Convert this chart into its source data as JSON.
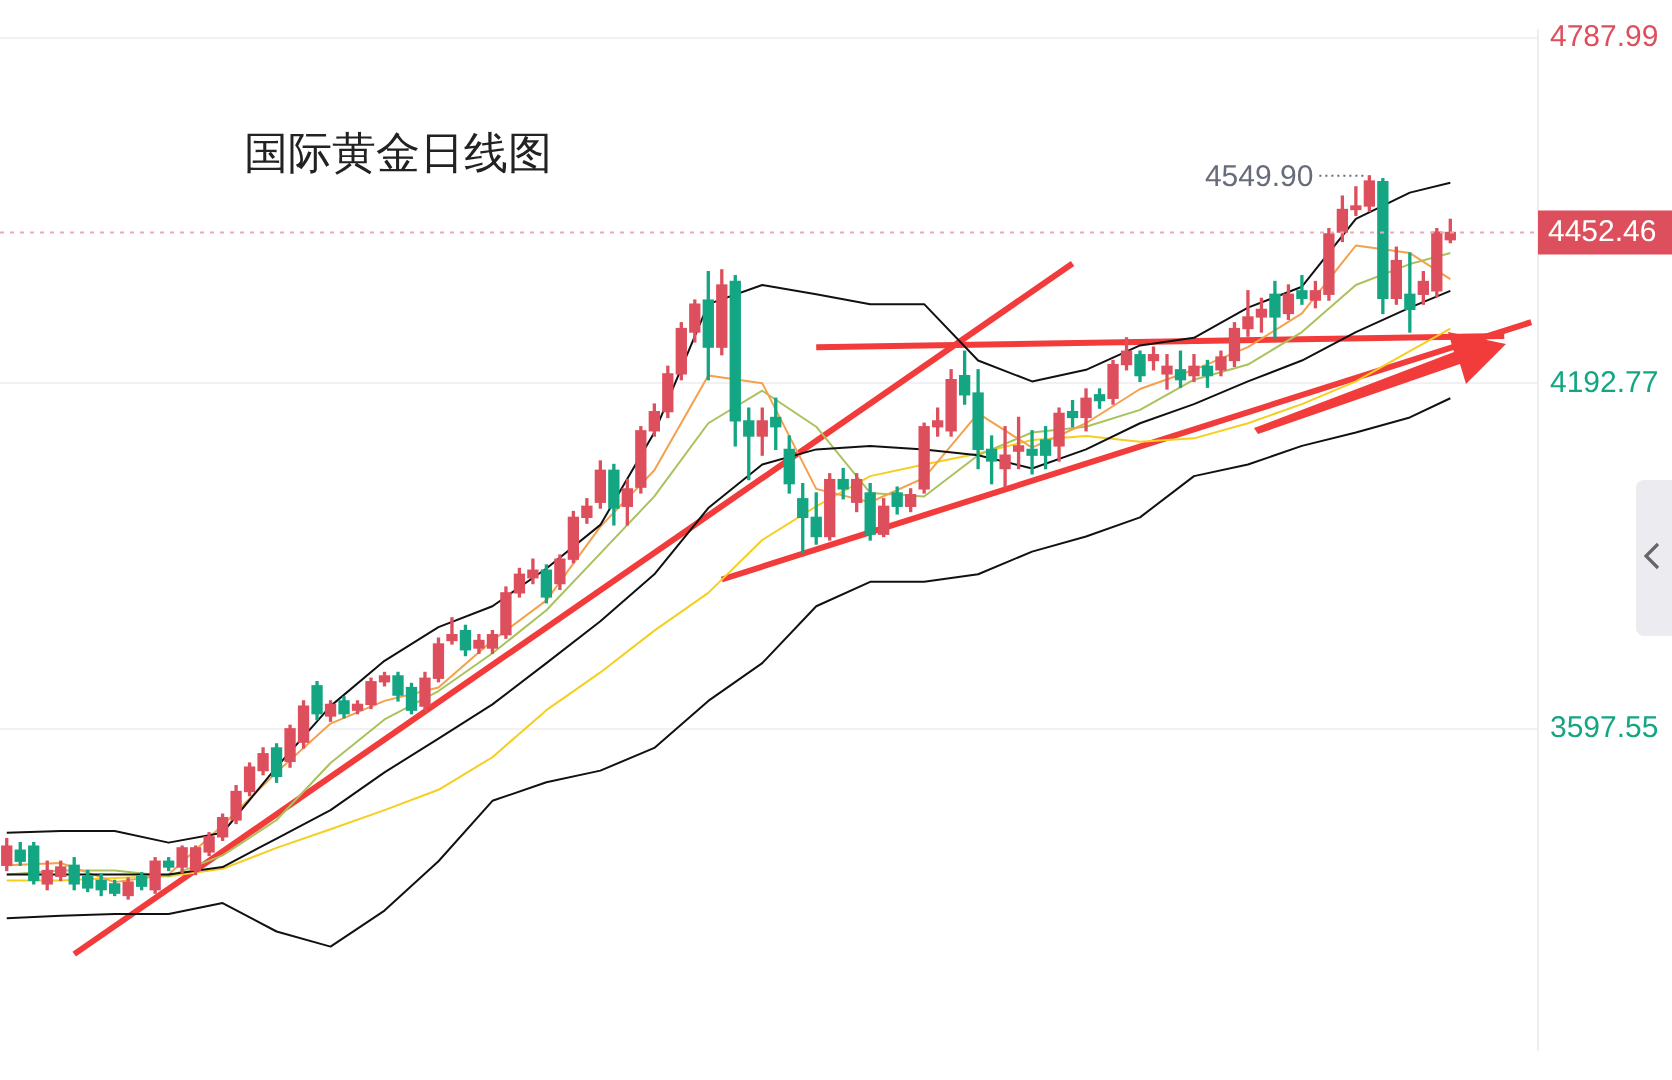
{
  "chart_data": {
    "type": "candlestick",
    "title": "国际黄金日线图",
    "categories": [
      null,
      null,
      null,
      null,
      null,
      null,
      null,
      null,
      null,
      null,
      null,
      null,
      null,
      null,
      null,
      null,
      null,
      null,
      null,
      null,
      null,
      null,
      null,
      null,
      null,
      null,
      null,
      null,
      null,
      null,
      null,
      null,
      null,
      null,
      null,
      null,
      null,
      null,
      null,
      null,
      null,
      null,
      null,
      null,
      null,
      null,
      null,
      null,
      null,
      null,
      null,
      null,
      null,
      null,
      null,
      null,
      null,
      null,
      null,
      null,
      null,
      null,
      null,
      null,
      null,
      null,
      null,
      null,
      null,
      null,
      null,
      null,
      null,
      null,
      null,
      null,
      null,
      null,
      null,
      null,
      null,
      null,
      null,
      null,
      null,
      null,
      null,
      null,
      null,
      null,
      null,
      null,
      null,
      null,
      null,
      null,
      null,
      null,
      null,
      null,
      null,
      null,
      null,
      null,
      null,
      null,
      null,
      null,
      null,
      null,
      null,
      null,
      null,
      null
    ],
    "ohlc": [
      [
        3363,
        3409,
        3354,
        3396
      ],
      [
        3389,
        3402,
        3363,
        3370
      ],
      [
        3396,
        3402,
        3331,
        3337
      ],
      [
        3331,
        3370,
        3321,
        3354
      ],
      [
        3344,
        3370,
        3337,
        3360
      ],
      [
        3363,
        3376,
        3321,
        3331
      ],
      [
        3344,
        3354,
        3318,
        3324
      ],
      [
        3337,
        3347,
        3311,
        3321
      ],
      [
        3331,
        3337,
        3311,
        3315
      ],
      [
        3311,
        3341,
        3305,
        3334
      ],
      [
        3344,
        3350,
        3321,
        3327
      ],
      [
        3321,
        3376,
        3315,
        3370
      ],
      [
        3370,
        3376,
        3354,
        3360
      ],
      [
        3360,
        3396,
        3350,
        3393
      ],
      [
        3354,
        3396,
        3347,
        3393
      ],
      [
        3386,
        3419,
        3380,
        3412
      ],
      [
        3412,
        3451,
        3406,
        3445
      ],
      [
        3441,
        3500,
        3435,
        3490
      ],
      [
        3490,
        3539,
        3483,
        3532
      ],
      [
        3526,
        3565,
        3519,
        3555
      ],
      [
        3565,
        3572,
        3506,
        3516
      ],
      [
        3542,
        3604,
        3532,
        3598
      ],
      [
        3575,
        3646,
        3565,
        3637
      ],
      [
        3672,
        3679,
        3614,
        3624
      ],
      [
        3620,
        3646,
        3611,
        3640
      ],
      [
        3646,
        3653,
        3617,
        3624
      ],
      [
        3630,
        3646,
        3624,
        3640
      ],
      [
        3640,
        3685,
        3633,
        3679
      ],
      [
        3679,
        3695,
        3672,
        3689
      ],
      [
        3689,
        3695,
        3646,
        3656
      ],
      [
        3669,
        3676,
        3624,
        3630
      ],
      [
        3637,
        3695,
        3630,
        3685
      ],
      [
        3685,
        3754,
        3679,
        3744
      ],
      [
        3750,
        3789,
        3744,
        3760
      ],
      [
        3767,
        3776,
        3724,
        3734
      ],
      [
        3737,
        3760,
        3728,
        3750
      ],
      [
        3737,
        3767,
        3728,
        3760
      ],
      [
        3760,
        3842,
        3754,
        3832
      ],
      [
        3832,
        3874,
        3825,
        3864
      ],
      [
        3858,
        3890,
        3848,
        3871
      ],
      [
        3871,
        3880,
        3815,
        3825
      ],
      [
        3848,
        3897,
        3838,
        3890
      ],
      [
        3890,
        3972,
        3884,
        3962
      ],
      [
        3962,
        3994,
        3952,
        3981
      ],
      [
        3988,
        4059,
        3978,
        4043
      ],
      [
        4043,
        4053,
        3949,
        3978
      ],
      [
        3981,
        4027,
        3949,
        4011
      ],
      [
        4014,
        4118,
        4004,
        4111
      ],
      [
        4111,
        4157,
        4102,
        4144
      ],
      [
        4144,
        4222,
        4134,
        4209
      ],
      [
        4209,
        4297,
        4199,
        4287
      ],
      [
        4281,
        4336,
        4264,
        4329
      ],
      [
        4336,
        4385,
        4199,
        4255
      ],
      [
        4255,
        4388,
        4242,
        4362
      ],
      [
        4368,
        4378,
        4085,
        4128
      ],
      [
        4128,
        4150,
        4027,
        4102
      ],
      [
        4102,
        4150,
        4069,
        4128
      ],
      [
        4134,
        4167,
        4079,
        4118
      ],
      [
        4079,
        4102,
        4004,
        4020
      ],
      [
        3994,
        4020,
        3900,
        3962
      ],
      [
        3962,
        4004,
        3916,
        3929
      ],
      [
        3929,
        4037,
        3923,
        4027
      ],
      [
        4027,
        4046,
        3994,
        4011
      ],
      [
        3988,
        4037,
        3972,
        4027
      ],
      [
        4004,
        4020,
        3923,
        3933
      ],
      [
        3933,
        3994,
        3929,
        3981
      ],
      [
        4004,
        4014,
        3968,
        3981
      ],
      [
        3981,
        4011,
        3972,
        4001
      ],
      [
        4011,
        4124,
        4004,
        4118
      ],
      [
        4118,
        4150,
        4102,
        4128
      ],
      [
        4111,
        4216,
        4102,
        4199
      ],
      [
        4206,
        4248,
        4157,
        4173
      ],
      [
        4176,
        4216,
        4046,
        4079
      ],
      [
        4079,
        4102,
        4020,
        4059
      ],
      [
        4046,
        4118,
        4014,
        4069
      ],
      [
        4076,
        4134,
        4046,
        4085
      ],
      [
        4079,
        4111,
        4037,
        4069
      ],
      [
        4095,
        4118,
        4046,
        4069
      ],
      [
        4085,
        4150,
        4059,
        4141
      ],
      [
        4144,
        4163,
        4118,
        4134
      ],
      [
        4134,
        4183,
        4111,
        4167
      ],
      [
        4173,
        4183,
        4150,
        4163
      ],
      [
        4167,
        4232,
        4157,
        4225
      ],
      [
        4225,
        4271,
        4216,
        4248
      ],
      [
        4242,
        4248,
        4196,
        4206
      ],
      [
        4232,
        4255,
        4216,
        4242
      ],
      [
        4209,
        4242,
        4183,
        4222
      ],
      [
        4216,
        4248,
        4186,
        4199
      ],
      [
        4206,
        4242,
        4196,
        4222
      ],
      [
        4222,
        4232,
        4186,
        4206
      ],
      [
        4216,
        4248,
        4206,
        4238
      ],
      [
        4232,
        4297,
        4222,
        4287
      ],
      [
        4287,
        4352,
        4274,
        4307
      ],
      [
        4307,
        4339,
        4281,
        4320
      ],
      [
        4346,
        4368,
        4271,
        4307
      ],
      [
        4313,
        4362,
        4303,
        4346
      ],
      [
        4352,
        4378,
        4329,
        4339
      ],
      [
        4336,
        4368,
        4323,
        4352
      ],
      [
        4346,
        4459,
        4336,
        4450
      ],
      [
        4453,
        4515,
        4437,
        4492
      ],
      [
        4492,
        4531,
        4482,
        4498
      ],
      [
        4498,
        4549.9,
        4489,
        4541
      ],
      [
        4540,
        4545,
        4313,
        4339
      ],
      [
        4339,
        4427,
        4329,
        4404
      ],
      [
        4346,
        4417,
        4281,
        4320
      ],
      [
        4346,
        4385,
        4329,
        4368
      ],
      [
        4352,
        4459,
        4342,
        4453
      ],
      [
        4440,
        4475,
        4435,
        4452.46
      ],
      null,
      null,
      null,
      null,
      null,
      null
    ],
    "series": [
      {
        "type": "line",
        "color": "#111111",
        "values": [
          3419,
          null,
          null,
          null,
          3422,
          null,
          null,
          null,
          3422,
          null,
          null,
          null,
          3402,
          null,
          null,
          null,
          3419,
          null,
          null,
          null,
          3532,
          null,
          null,
          null,
          3637,
          null,
          null,
          null,
          3715,
          null,
          null,
          null,
          3773,
          null,
          null,
          null,
          3809,
          null,
          null,
          null,
          3874,
          null,
          null,
          null,
          3949,
          null,
          null,
          null,
          4108,
          null,
          null,
          null,
          4329,
          null,
          null,
          null,
          4362,
          null,
          null,
          null,
          4346,
          null,
          null,
          null,
          4329,
          null,
          null,
          null,
          4329,
          null,
          null,
          null,
          4232,
          null,
          null,
          null,
          4196,
          null,
          null,
          null,
          4216,
          null,
          null,
          null,
          4258,
          null,
          null,
          null,
          4271,
          null,
          null,
          null,
          4323,
          null,
          null,
          null,
          4359,
          null,
          null,
          null,
          4476,
          null,
          null,
          null,
          4521,
          null,
          null,
          4538,
          null,
          null,
          null,
          null,
          null,
          null
        ]
      },
      {
        "type": "line",
        "color": "#111111",
        "values": [
          3347,
          null,
          null,
          null,
          3347,
          null,
          null,
          null,
          3347,
          null,
          null,
          null,
          3347,
          null,
          null,
          null,
          3360,
          null,
          null,
          null,
          3409,
          null,
          null,
          null,
          3458,
          null,
          null,
          null,
          3523,
          null,
          null,
          null,
          3581,
          null,
          null,
          null,
          3640,
          null,
          null,
          null,
          3711,
          null,
          null,
          null,
          3783,
          null,
          null,
          null,
          3864,
          null,
          null,
          null,
          3978,
          null,
          null,
          null,
          4053,
          null,
          null,
          null,
          4079,
          null,
          null,
          null,
          4085,
          null,
          null,
          null,
          4079,
          null,
          null,
          null,
          4069,
          null,
          null,
          null,
          4046,
          null,
          null,
          null,
          4079,
          null,
          null,
          null,
          4124,
          null,
          null,
          null,
          4157,
          null,
          null,
          null,
          4196,
          null,
          null,
          null,
          4232,
          null,
          null,
          null,
          4281,
          null,
          null,
          null,
          4323,
          null,
          null,
          4352,
          null,
          null,
          null,
          null,
          null,
          null
        ]
      },
      {
        "type": "line",
        "color": "#111111",
        "values": [
          3272,
          null,
          null,
          null,
          3276,
          null,
          null,
          null,
          3279,
          null,
          null,
          null,
          3279,
          null,
          null,
          null,
          3298,
          null,
          null,
          null,
          3249,
          null,
          null,
          null,
          3223,
          null,
          null,
          null,
          3285,
          null,
          null,
          null,
          3370,
          null,
          null,
          null,
          3474,
          null,
          null,
          null,
          3506,
          null,
          null,
          null,
          3526,
          null,
          null,
          null,
          3565,
          null,
          null,
          null,
          3646,
          null,
          null,
          null,
          3711,
          null,
          null,
          null,
          3809,
          null,
          null,
          null,
          3851,
          null,
          null,
          null,
          3851,
          null,
          null,
          null,
          3864,
          null,
          null,
          null,
          3903,
          null,
          null,
          null,
          3929,
          null,
          null,
          null,
          3962,
          null,
          null,
          null,
          4033,
          null,
          null,
          null,
          4053,
          null,
          null,
          null,
          4085,
          null,
          null,
          null,
          4108,
          null,
          null,
          null,
          4134,
          null,
          null,
          4167,
          null,
          null,
          null,
          null,
          null,
          null
        ]
      },
      {
        "type": "line",
        "color": "#f5a04a",
        "values": [
          3363,
          null,
          null,
          null,
          3367,
          null,
          null,
          null,
          3334,
          null,
          null,
          null,
          3347,
          null,
          null,
          null,
          3432,
          null,
          null,
          null,
          3523,
          null,
          null,
          null,
          3607,
          null,
          null,
          null,
          3646,
          null,
          null,
          null,
          3669,
          null,
          null,
          null,
          3750,
          null,
          null,
          null,
          3819,
          null,
          null,
          null,
          3946,
          null,
          null,
          null,
          4043,
          null,
          null,
          null,
          4206,
          null,
          null,
          null,
          4193,
          null,
          null,
          null,
          4011,
          null,
          null,
          null,
          3988,
          null,
          null,
          null,
          4030,
          null,
          null,
          null,
          4141,
          null,
          null,
          null,
          4082,
          null,
          null,
          null,
          4124,
          null,
          null,
          null,
          4183,
          null,
          null,
          null,
          4216,
          null,
          null,
          null,
          4255,
          null,
          null,
          null,
          4313,
          null,
          null,
          null,
          4430,
          null,
          null,
          null,
          4417,
          null,
          null,
          4372,
          null,
          null,
          null,
          null,
          null,
          null
        ]
      },
      {
        "type": "line",
        "color": "#a9c25c",
        "values": [
          3347,
          null,
          null,
          null,
          3354,
          null,
          null,
          null,
          3354,
          null,
          null,
          null,
          3344,
          null,
          null,
          null,
          3380,
          null,
          null,
          null,
          3441,
          null,
          null,
          null,
          3539,
          null,
          null,
          null,
          3614,
          null,
          null,
          null,
          3663,
          null,
          null,
          null,
          3728,
          null,
          null,
          null,
          3802,
          null,
          null,
          null,
          3900,
          null,
          null,
          null,
          3998,
          null,
          null,
          null,
          4124,
          null,
          null,
          null,
          4180,
          null,
          null,
          null,
          4118,
          null,
          null,
          null,
          4004,
          null,
          null,
          null,
          3998,
          null,
          null,
          null,
          4069,
          null,
          null,
          null,
          4108,
          null,
          null,
          null,
          4118,
          null,
          null,
          null,
          4147,
          null,
          null,
          null,
          4199,
          null,
          null,
          null,
          4225,
          null,
          null,
          null,
          4281,
          null,
          null,
          null,
          4362,
          null,
          null,
          null,
          4398,
          null,
          null,
          4417,
          null,
          null,
          null,
          null,
          null,
          null
        ]
      },
      {
        "type": "line",
        "color": "#f5cf1f",
        "values": [
          3337,
          null,
          null,
          null,
          3337,
          null,
          null,
          null,
          3341,
          null,
          null,
          null,
          3344,
          null,
          null,
          null,
          3357,
          null,
          null,
          null,
          3393,
          null,
          null,
          null,
          3425,
          null,
          null,
          null,
          3458,
          null,
          null,
          null,
          3493,
          null,
          null,
          null,
          3549,
          null,
          null,
          null,
          3630,
          null,
          null,
          null,
          3695,
          null,
          null,
          null,
          3767,
          null,
          null,
          null,
          3832,
          null,
          null,
          null,
          3923,
          null,
          null,
          null,
          3981,
          null,
          null,
          null,
          4033,
          null,
          null,
          null,
          4053,
          null,
          null,
          null,
          4072,
          null,
          null,
          null,
          4095,
          null,
          null,
          null,
          4102,
          null,
          null,
          null,
          4092,
          null,
          null,
          null,
          4098,
          null,
          null,
          null,
          4124,
          null,
          null,
          null,
          4157,
          null,
          null,
          null,
          4196,
          null,
          null,
          null,
          4248,
          null,
          null,
          4287,
          null,
          null,
          null,
          null,
          null,
          null
        ]
      },
      {
        "type": "line",
        "color": "#f23b3b",
        "values": [
          null,
          null,
          null,
          null,
          null,
          3210,
          null,
          null,
          null,
          null,
          null,
          null,
          null,
          null,
          null,
          null,
          null,
          null,
          null,
          null,
          null,
          null,
          null,
          null,
          null,
          null,
          null,
          null,
          null,
          null,
          null,
          null,
          null,
          null,
          null,
          null,
          null,
          null,
          null,
          null,
          null,
          null,
          null,
          null,
          null,
          null,
          null,
          null,
          null,
          null,
          null,
          null,
          null,
          null,
          null,
          null,
          null,
          null,
          null,
          null,
          null,
          null,
          null,
          null,
          null,
          null,
          null,
          null,
          null,
          null,
          null,
          null,
          null,
          null,
          null,
          null,
          null,
          null,
          null,
          4399,
          null,
          null,
          null,
          null,
          null,
          null,
          null,
          null,
          null,
          null,
          null,
          null,
          null,
          null,
          null,
          null,
          null,
          null,
          null,
          null,
          null,
          null,
          null,
          null,
          null,
          null,
          null,
          null,
          null,
          null,
          null,
          null,
          null,
          null
        ]
      },
      {
        "type": "line",
        "color": "#f23b3b",
        "values": [
          null,
          null,
          null,
          null,
          null,
          null,
          null,
          null,
          null,
          null,
          null,
          null,
          null,
          null,
          null,
          null,
          null,
          null,
          null,
          null,
          null,
          null,
          null,
          null,
          null,
          null,
          null,
          null,
          null,
          null,
          null,
          null,
          null,
          null,
          null,
          null,
          null,
          null,
          null,
          null,
          null,
          null,
          null,
          null,
          null,
          null,
          null,
          null,
          null,
          null,
          null,
          null,
          null,
          3855,
          null,
          null,
          null,
          null,
          null,
          null,
          null,
          null,
          null,
          null,
          null,
          null,
          null,
          null,
          null,
          null,
          null,
          null,
          null,
          null,
          null,
          null,
          null,
          null,
          null,
          null,
          null,
          null,
          null,
          null,
          null,
          null,
          null,
          null,
          null,
          null,
          null,
          null,
          null,
          null,
          null,
          null,
          null,
          null,
          null,
          null,
          null,
          null,
          null,
          null,
          null,
          null,
          null,
          null,
          null,
          null,
          null,
          null,
          null,
          4298
        ]
      },
      {
        "type": "line",
        "color": "#f23b3b",
        "values": [
          null,
          null,
          null,
          null,
          null,
          null,
          null,
          null,
          null,
          null,
          null,
          null,
          null,
          null,
          null,
          null,
          null,
          null,
          null,
          null,
          null,
          null,
          null,
          null,
          null,
          null,
          null,
          null,
          null,
          null,
          null,
          null,
          null,
          null,
          null,
          null,
          null,
          null,
          null,
          null,
          null,
          null,
          null,
          null,
          null,
          null,
          null,
          null,
          null,
          null,
          null,
          null,
          null,
          null,
          null,
          null,
          null,
          null,
          null,
          null,
          4255,
          null,
          null,
          null,
          null,
          null,
          null,
          null,
          null,
          null,
          null,
          null,
          null,
          null,
          null,
          null,
          null,
          null,
          null,
          null,
          null,
          null,
          null,
          null,
          null,
          null,
          null,
          null,
          null,
          null,
          null,
          null,
          null,
          null,
          null,
          null,
          null,
          null,
          null,
          null,
          null,
          null,
          null,
          null,
          null,
          null,
          null,
          null,
          null,
          null,
          null,
          4274,
          null,
          null
        ]
      }
    ],
    "ylim": [
      3045,
      4801
    ],
    "yticks": [
      3597.55,
      4192.77,
      4787.99
    ],
    "ref_lines": [
      {
        "axis": "y",
        "value": 4452.46,
        "label": "4452.46",
        "color": "#eeaab2",
        "line_style": "dotted"
      }
    ],
    "annotations": [
      "4549.90"
    ],
    "grid": "y",
    "legend": false,
    "tick_labels": "y",
    "marker": "none"
  }
}
